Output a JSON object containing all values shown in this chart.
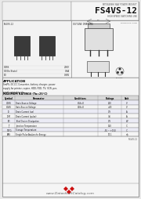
{
  "title_company": "MITSUBISHI RAX POWER MOSFET",
  "title_part": "FS4VS-12",
  "title_sub": "HIGH SPEED SWITCHING USE",
  "bg_color": "#f0f0f0",
  "section_photo_label": "FS4VS-12",
  "section_outline_label": "OUTLINE DRAWING",
  "spec1_label": "VDSS",
  "spec1_dots": "......................................",
  "spec1_value": "200V",
  "spec2_label": "ID(On State)",
  "spec2_dots": "..............................",
  "spec2_value": "0.9A",
  "spec3_label": "PD",
  "spec3_dots": ".........................................",
  "spec3_value": "0.9W",
  "application_title": "APPLICATION",
  "application_text": "SmPS, DC-DC Converter, battery charger, power\nsupply for printer, copier, HDD, FDD, TV, VCR, per-\nsonal computer etc.",
  "abs_max_title": "MAXIMUM RATINGS (Ta=25°C)",
  "table_headers": [
    "Symbol",
    "Parameter",
    "Conditions",
    "Ratings",
    "Unit"
  ],
  "table_rows": [
    [
      "VDSS",
      "Drain-Source Voltage",
      "VGS=0",
      "200",
      "V"
    ],
    [
      "VGSS",
      "Gate-Source Voltage",
      "VDS=0",
      "±20",
      "V"
    ],
    [
      "ID",
      "Drain Current (cw)",
      "",
      "0.9",
      "A"
    ],
    [
      "IDM",
      "Drain Current (pulse)",
      "",
      "3.6",
      "A"
    ],
    [
      "PD",
      "Total Device Dissipation",
      "",
      "0.9",
      "W"
    ],
    [
      "TJ",
      "Junction Temperature",
      "",
      "150",
      "°C"
    ],
    [
      "TSTG",
      "Storage Temperature",
      "",
      "-55 ~ +150",
      "°C"
    ],
    [
      "EAS",
      "Single Pulse Avalanche Energy",
      "",
      "17.1",
      "mJ"
    ]
  ],
  "footer_url": "www.DatasheetCatalog.com",
  "page_note": "FS4VS-12"
}
